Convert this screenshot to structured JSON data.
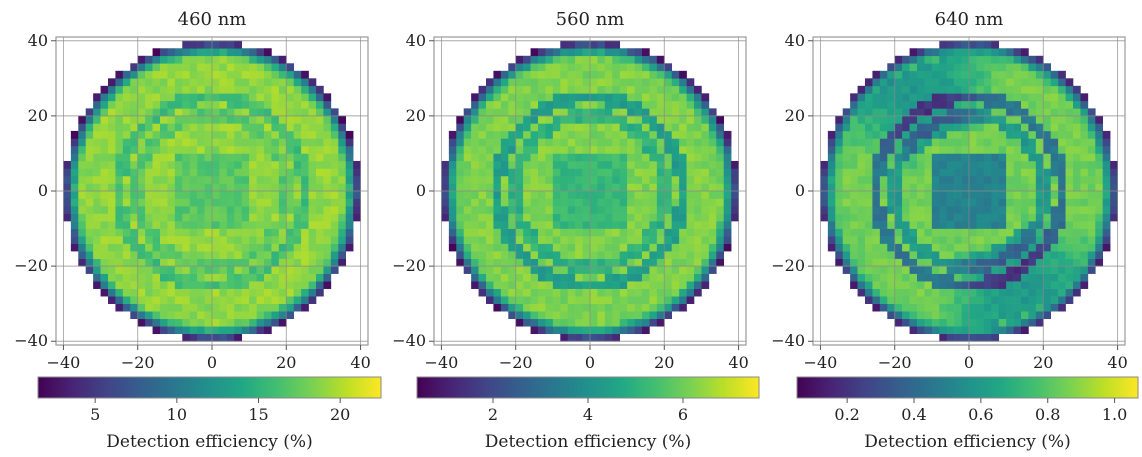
{
  "chart_data": [
    {
      "type": "heatmap",
      "title": "460 nm",
      "xlabel": "",
      "ylabel": "",
      "xlim": [
        -42,
        42
      ],
      "ylim": [
        -41,
        41
      ],
      "xticks": [
        -40,
        -20,
        0,
        20,
        40
      ],
      "yticks": [
        40,
        20,
        0,
        -20,
        -40
      ],
      "xtick_labels": [
        "−40",
        "−20",
        "0",
        "20",
        "40"
      ],
      "ytick_labels": [
        "40",
        "20",
        "0",
        "−20",
        "−40"
      ],
      "grid": true,
      "colormap": "viridis",
      "colorbar": {
        "range": [
          1.5,
          22.5
        ],
        "ticks": [
          5,
          10,
          15,
          20
        ],
        "tick_labels": [
          "5",
          "10",
          "15",
          "20"
        ],
        "label": "Detection efficiency (%)"
      },
      "map": {
        "disk_radius": 40,
        "typical_value": 19,
        "edge_value": 2,
        "inner_square": {
          "half_width": 10,
          "value": 17
        },
        "rings": [
          {
            "radius": 25,
            "value": 16
          },
          {
            "radius": 20,
            "value": 17
          }
        ]
      }
    },
    {
      "type": "heatmap",
      "title": "560 nm",
      "xlabel": "",
      "ylabel": "",
      "xlim": [
        -42,
        42
      ],
      "ylim": [
        -41,
        41
      ],
      "xticks": [
        -40,
        -20,
        0,
        20,
        40
      ],
      "yticks": [
        40,
        20,
        0,
        -20,
        -40
      ],
      "xtick_labels": [
        "−40",
        "−20",
        "0",
        "20",
        "40"
      ],
      "ytick_labels": [
        "40",
        "20",
        "0",
        "−20",
        "−40"
      ],
      "grid": true,
      "colormap": "viridis",
      "colorbar": {
        "range": [
          0.4,
          7.6
        ],
        "ticks": [
          2,
          4,
          6
        ],
        "tick_labels": [
          "2",
          "4",
          "6"
        ],
        "label": "Detection efficiency (%)"
      },
      "map": {
        "disk_radius": 40,
        "typical_value": 6.2,
        "edge_value": 0.6,
        "inner_square": {
          "half_width": 10,
          "value": 5.2
        },
        "rings": [
          {
            "radius": 25,
            "value": 4.4
          },
          {
            "radius": 20,
            "value": 5.0
          }
        ]
      }
    },
    {
      "type": "heatmap",
      "title": "640 nm",
      "xlabel": "",
      "ylabel": "",
      "xlim": [
        -42,
        42
      ],
      "ylim": [
        -41,
        41
      ],
      "xticks": [
        -40,
        -20,
        0,
        20,
        40
      ],
      "yticks": [
        40,
        20,
        0,
        -20,
        -40
      ],
      "xtick_labels": [
        "−40",
        "−20",
        "0",
        "20",
        "40"
      ],
      "ytick_labels": [
        "40",
        "20",
        "0",
        "−20",
        "−40"
      ],
      "grid": true,
      "colormap": "viridis",
      "colorbar": {
        "range": [
          0.05,
          1.07
        ],
        "ticks": [
          0.2,
          0.4,
          0.6,
          0.8,
          1.0
        ],
        "tick_labels": [
          "0.2",
          "0.4",
          "0.6",
          "0.8",
          "1.0"
        ],
        "label": "Detection efficiency (%)"
      },
      "map": {
        "disk_radius": 40,
        "typical_value": 0.85,
        "edge_value": 0.12,
        "inner_square": {
          "half_width": 10,
          "value": 0.5
        },
        "rings": [
          {
            "radius": 25,
            "value": 0.45
          },
          {
            "radius": 20,
            "value": 0.6
          }
        ]
      }
    }
  ]
}
